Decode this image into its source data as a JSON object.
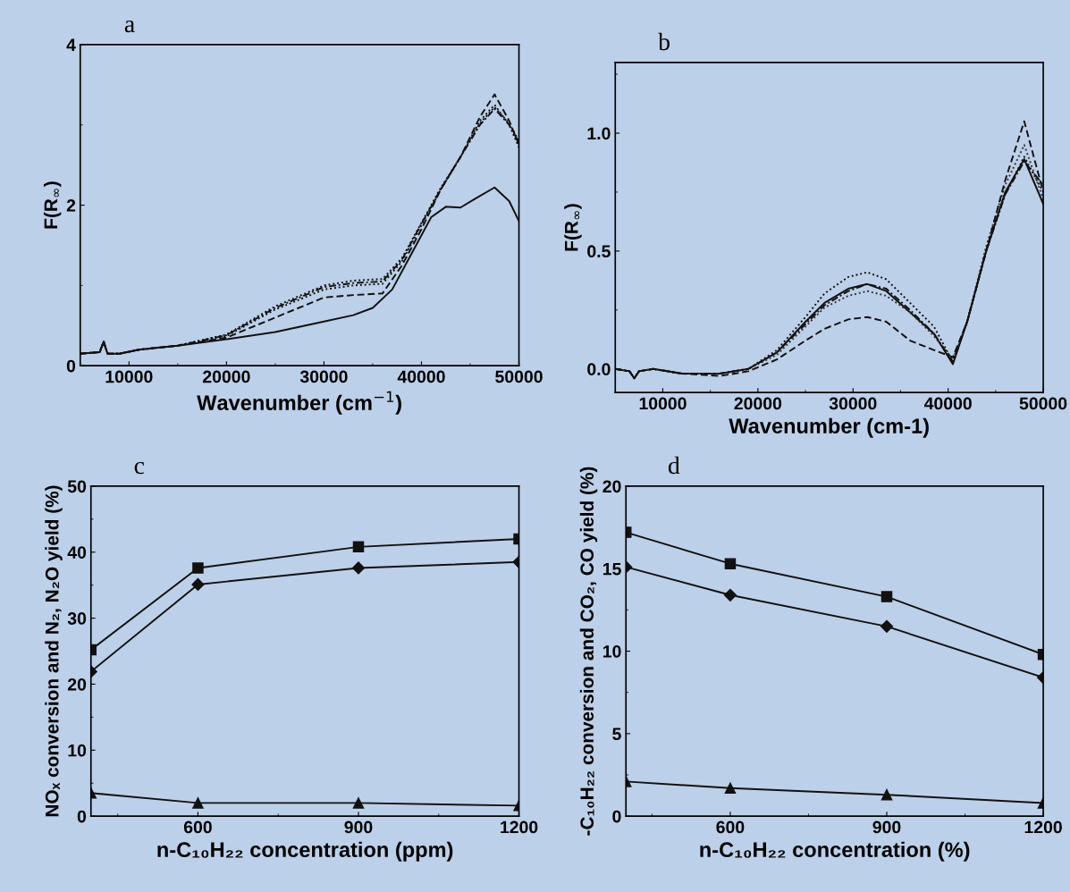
{
  "chart_data": [
    {
      "type": "line",
      "title": "a",
      "xlabel": "Wavenumber (cm$^{−1}$)",
      "ylabel": "F(R$_{∞}$)",
      "xlim": [
        5000,
        50000
      ],
      "ylim": [
        0,
        4
      ],
      "xticks": [
        10000,
        20000,
        30000,
        40000,
        50000
      ],
      "yticks": [
        0,
        2,
        4
      ],
      "grid": false,
      "series": [
        {
          "color": "#111111",
          "line_style": "solid",
          "x": [
            5000,
            7000,
            7400,
            7800,
            9000,
            11000,
            15000,
            20000,
            25000,
            30000,
            33000,
            35000,
            37000,
            39000,
            41000,
            42500,
            44000,
            45500,
            47500,
            49000,
            50000
          ],
          "values": [
            0.15,
            0.17,
            0.3,
            0.15,
            0.15,
            0.2,
            0.25,
            0.33,
            0.42,
            0.55,
            0.63,
            0.72,
            0.95,
            1.4,
            1.85,
            1.98,
            1.97,
            2.08,
            2.22,
            2.05,
            1.8
          ]
        },
        {
          "color": "#111111",
          "line_style": "dashed",
          "x": [
            5000,
            7000,
            7400,
            7800,
            9000,
            11000,
            15000,
            20000,
            25000,
            30000,
            33000,
            36000,
            38000,
            40000,
            42000,
            44000,
            46000,
            47500,
            49000,
            50000
          ],
          "values": [
            0.15,
            0.17,
            0.3,
            0.15,
            0.15,
            0.2,
            0.25,
            0.35,
            0.6,
            0.85,
            0.88,
            0.9,
            1.25,
            1.7,
            2.2,
            2.6,
            3.1,
            3.38,
            3.05,
            2.75
          ]
        },
        {
          "color": "#111111",
          "line_style": "dotted",
          "x": [
            5000,
            7000,
            7400,
            7800,
            9000,
            11000,
            15000,
            20000,
            25000,
            30000,
            33000,
            36000,
            38000,
            40000,
            42000,
            44000,
            46000,
            47500,
            49000,
            50000
          ],
          "values": [
            0.15,
            0.17,
            0.3,
            0.15,
            0.15,
            0.2,
            0.25,
            0.37,
            0.7,
            0.95,
            1.0,
            1.02,
            1.3,
            1.75,
            2.2,
            2.6,
            3.05,
            3.25,
            3.0,
            2.72
          ]
        },
        {
          "color": "#111111",
          "line_style": "dashdot",
          "x": [
            5000,
            7000,
            7400,
            7800,
            9000,
            11000,
            15000,
            20000,
            25000,
            30000,
            33000,
            36000,
            38000,
            40000,
            42000,
            44000,
            46000,
            47500,
            49000,
            50000
          ],
          "values": [
            0.15,
            0.17,
            0.3,
            0.15,
            0.15,
            0.2,
            0.25,
            0.38,
            0.72,
            0.98,
            1.03,
            1.05,
            1.32,
            1.77,
            2.2,
            2.6,
            3.0,
            3.2,
            3.0,
            2.78
          ]
        },
        {
          "color": "#111111",
          "line_style": "dotted",
          "x": [
            5000,
            7000,
            7400,
            7800,
            9000,
            11000,
            15000,
            20000,
            25000,
            30000,
            33000,
            36000,
            38000,
            40000,
            42000,
            44000,
            46000,
            47500,
            49000,
            50000
          ],
          "values": [
            0.15,
            0.17,
            0.3,
            0.15,
            0.15,
            0.2,
            0.25,
            0.39,
            0.74,
            1.0,
            1.06,
            1.08,
            1.34,
            1.78,
            2.22,
            2.6,
            3.02,
            3.22,
            3.02,
            2.8
          ]
        }
      ]
    },
    {
      "type": "line",
      "title": "b",
      "xlabel": "Wavenumber (cm-1)",
      "ylabel": "F(R$_{∞}$)",
      "xlim": [
        5000,
        50000
      ],
      "ylim": [
        -0.1,
        1.3
      ],
      "xticks": [
        10000,
        20000,
        30000,
        40000,
        50000
      ],
      "yticks": [
        {
          "value": 0,
          "label": "0.0"
        },
        0.5,
        {
          "value": 1,
          "label": "1.0"
        }
      ],
      "grid": false,
      "series": [
        {
          "color": "#111111",
          "line_style": "solid",
          "x": [
            5000,
            6500,
            7000,
            7500,
            9000,
            12000,
            16000,
            19000,
            22000,
            25000,
            27000,
            29500,
            31500,
            33500,
            36000,
            38500,
            40500,
            42000,
            44000,
            46000,
            48000,
            50000
          ],
          "values": [
            0.0,
            -0.01,
            -0.04,
            -0.01,
            0.0,
            -0.02,
            -0.02,
            0.0,
            0.07,
            0.2,
            0.28,
            0.34,
            0.36,
            0.33,
            0.24,
            0.15,
            0.02,
            0.2,
            0.5,
            0.75,
            0.89,
            0.7
          ]
        },
        {
          "color": "#111111",
          "line_style": "dotted",
          "x": [
            5000,
            6500,
            7000,
            7500,
            9000,
            12000,
            16000,
            19000,
            22000,
            25000,
            27000,
            29500,
            31500,
            33500,
            36000,
            38500,
            40500,
            42000,
            44000,
            46000,
            48000,
            50000
          ],
          "values": [
            0.0,
            -0.01,
            -0.04,
            -0.01,
            0.0,
            -0.02,
            -0.02,
            0.0,
            0.08,
            0.22,
            0.32,
            0.39,
            0.41,
            0.38,
            0.28,
            0.18,
            0.03,
            0.2,
            0.5,
            0.74,
            0.9,
            0.75
          ]
        },
        {
          "color": "#333333",
          "line_style": "dotted",
          "x": [
            5000,
            6500,
            7000,
            7500,
            9000,
            12000,
            16000,
            19000,
            22000,
            25000,
            27000,
            29500,
            31500,
            33500,
            36000,
            38500,
            40500,
            42000,
            44000,
            46000,
            48000,
            50000
          ],
          "values": [
            0.0,
            -0.01,
            -0.04,
            -0.01,
            0.0,
            -0.02,
            -0.02,
            0.0,
            0.06,
            0.18,
            0.26,
            0.31,
            0.33,
            0.31,
            0.24,
            0.14,
            0.04,
            0.2,
            0.52,
            0.78,
            0.95,
            0.72
          ]
        },
        {
          "color": "#111111",
          "line_style": "dashdot",
          "x": [
            5000,
            6500,
            7000,
            7500,
            9000,
            12000,
            16000,
            19000,
            22000,
            25000,
            27000,
            29500,
            31500,
            33500,
            36000,
            38500,
            40500,
            42000,
            44000,
            46000,
            48000,
            50000
          ],
          "values": [
            0.0,
            -0.01,
            -0.04,
            -0.01,
            0.0,
            -0.02,
            -0.02,
            0.0,
            0.07,
            0.19,
            0.27,
            0.33,
            0.36,
            0.34,
            0.25,
            0.15,
            0.03,
            0.2,
            0.5,
            0.74,
            0.88,
            0.78
          ]
        },
        {
          "color": "#111111",
          "line_style": "dashed",
          "x": [
            5000,
            6500,
            7000,
            7500,
            9000,
            12000,
            16000,
            19000,
            22000,
            25000,
            27000,
            29500,
            31500,
            33500,
            36000,
            38500,
            40500,
            42000,
            44000,
            46000,
            48000,
            50000
          ],
          "values": [
            0.0,
            -0.01,
            -0.04,
            -0.01,
            0.0,
            -0.02,
            -0.03,
            -0.01,
            0.04,
            0.12,
            0.17,
            0.21,
            0.22,
            0.2,
            0.12,
            0.08,
            0.05,
            0.2,
            0.5,
            0.8,
            1.05,
            0.75
          ]
        }
      ]
    },
    {
      "type": "line",
      "title": "c",
      "xlabel": "n-C₁₀H₂₂ concentration (ppm)",
      "ylabel": "NOₓ conversion and N₂, N₂O yield (%)",
      "xlim": [
        400,
        1200
      ],
      "ylim": [
        0,
        50
      ],
      "xticks": [
        600,
        900,
        1200
      ],
      "yticks": [
        0,
        10,
        20,
        30,
        40,
        50
      ],
      "grid": false,
      "x": [
        400,
        600,
        900,
        1200
      ],
      "series": [
        {
          "color": "#111111",
          "marker": "square",
          "line_style": "solid",
          "values": [
            25.2,
            37.6,
            40.8,
            42.0
          ]
        },
        {
          "color": "#111111",
          "marker": "diamond",
          "line_style": "solid",
          "values": [
            21.9,
            35.1,
            37.6,
            38.5
          ]
        },
        {
          "color": "#111111",
          "marker": "triangle",
          "line_style": "solid",
          "values": [
            3.5,
            2.0,
            2.0,
            1.6
          ]
        }
      ]
    },
    {
      "type": "line",
      "title": "d",
      "xlabel": "n-C₁₀H₂₂ concentration (%)",
      "ylabel": "-C₁₀H₂₂ conversion and CO₂, CO yield (%)",
      "xlim": [
        400,
        1200
      ],
      "ylim": [
        0,
        20
      ],
      "xticks": [
        600,
        900,
        1200
      ],
      "yticks": [
        0,
        5,
        10,
        15,
        20
      ],
      "grid": false,
      "x": [
        400,
        600,
        900,
        1200
      ],
      "series": [
        {
          "color": "#111111",
          "marker": "square",
          "line_style": "solid",
          "values": [
            17.2,
            15.3,
            13.3,
            9.8
          ]
        },
        {
          "color": "#111111",
          "marker": "diamond",
          "line_style": "solid",
          "values": [
            15.1,
            13.4,
            11.5,
            8.4
          ]
        },
        {
          "color": "#111111",
          "marker": "triangle",
          "line_style": "solid",
          "values": [
            2.1,
            1.7,
            1.3,
            0.8
          ]
        }
      ]
    }
  ]
}
